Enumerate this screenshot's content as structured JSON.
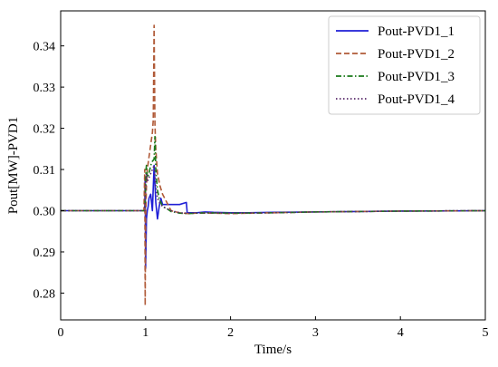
{
  "chart_data": {
    "type": "line",
    "title": "",
    "xlabel": "Time/s",
    "ylabel": "Pout[MW]-PVD1",
    "xlim": [
      0,
      5
    ],
    "ylim": [
      0.2735,
      0.3485
    ],
    "x_ticks": [
      "0",
      "1",
      "2",
      "3",
      "4",
      "5"
    ],
    "y_ticks": [
      "0.28",
      "0.29",
      "0.30",
      "0.31",
      "0.32",
      "0.33",
      "0.34"
    ],
    "grid": false,
    "legend_position": "top-right",
    "series": [
      {
        "name": "Pout-PVD1_1",
        "style": "solid",
        "color": "#1f1fd6",
        "x": [
          0,
          0.99,
          0.995,
          1.0,
          1.01,
          1.02,
          1.03,
          1.04,
          1.06,
          1.08,
          1.1,
          1.12,
          1.14,
          1.16,
          1.18,
          1.2,
          1.3,
          1.4,
          1.48,
          1.49,
          1.5,
          1.6,
          1.7,
          1.8,
          2.0,
          2.2,
          2.5,
          3.0,
          4.0,
          5.0
        ],
        "y": [
          0.3,
          0.3,
          0.308,
          0.286,
          0.298,
          0.3,
          0.301,
          0.303,
          0.304,
          0.3,
          0.311,
          0.302,
          0.298,
          0.301,
          0.303,
          0.3015,
          0.3015,
          0.3015,
          0.302,
          0.2995,
          0.2995,
          0.2995,
          0.2997,
          0.2996,
          0.2995,
          0.2995,
          0.2996,
          0.2997,
          0.2999,
          0.3
        ]
      },
      {
        "name": "Pout-PVD1_2",
        "style": "dashed",
        "color": "#b05a38",
        "x": [
          0,
          0.98,
          0.99,
          0.995,
          1.0,
          1.01,
          1.02,
          1.04,
          1.06,
          1.08,
          1.09,
          1.1,
          1.11,
          1.12,
          1.14,
          1.17,
          1.2,
          1.25,
          1.3,
          1.4,
          1.5,
          1.6,
          1.8,
          2.0,
          2.5,
          3.0,
          4.0,
          5.0
        ],
        "y": [
          0.3,
          0.3,
          0.31,
          0.277,
          0.298,
          0.306,
          0.31,
          0.313,
          0.316,
          0.319,
          0.322,
          0.345,
          0.321,
          0.315,
          0.309,
          0.306,
          0.304,
          0.302,
          0.3,
          0.2995,
          0.2993,
          0.2994,
          0.2994,
          0.2993,
          0.2995,
          0.2997,
          0.2999,
          0.3
        ]
      },
      {
        "name": "Pout-PVD1_3",
        "style": "dashdot",
        "color": "#1a7a1a",
        "x": [
          0,
          0.99,
          1.0,
          1.005,
          1.01,
          1.02,
          1.04,
          1.06,
          1.08,
          1.1,
          1.11,
          1.12,
          1.14,
          1.16,
          1.2,
          1.25,
          1.3,
          1.4,
          1.5,
          1.7,
          2.0,
          2.5,
          3.0,
          4.0,
          5.0
        ],
        "y": [
          0.3,
          0.3,
          0.306,
          0.31,
          0.311,
          0.308,
          0.309,
          0.311,
          0.312,
          0.3125,
          0.318,
          0.31,
          0.305,
          0.303,
          0.301,
          0.3005,
          0.2998,
          0.2994,
          0.2993,
          0.2995,
          0.2994,
          0.2995,
          0.2997,
          0.2999,
          0.3
        ]
      },
      {
        "name": "Pout-PVD1_4",
        "style": "dotted",
        "color": "#5a2a6a",
        "x": [
          0,
          0.99,
          1.0,
          1.01,
          1.02,
          1.04,
          1.06,
          1.08,
          1.1,
          1.12,
          1.14,
          1.16,
          1.2,
          1.3,
          1.4,
          1.5,
          1.7,
          2.0,
          2.5,
          3.0,
          4.0,
          5.0
        ],
        "y": [
          0.3,
          0.3,
          0.305,
          0.309,
          0.307,
          0.308,
          0.309,
          0.31,
          0.311,
          0.306,
          0.303,
          0.302,
          0.301,
          0.3,
          0.2995,
          0.2994,
          0.2995,
          0.2994,
          0.2995,
          0.2997,
          0.2999,
          0.3
        ]
      }
    ]
  }
}
